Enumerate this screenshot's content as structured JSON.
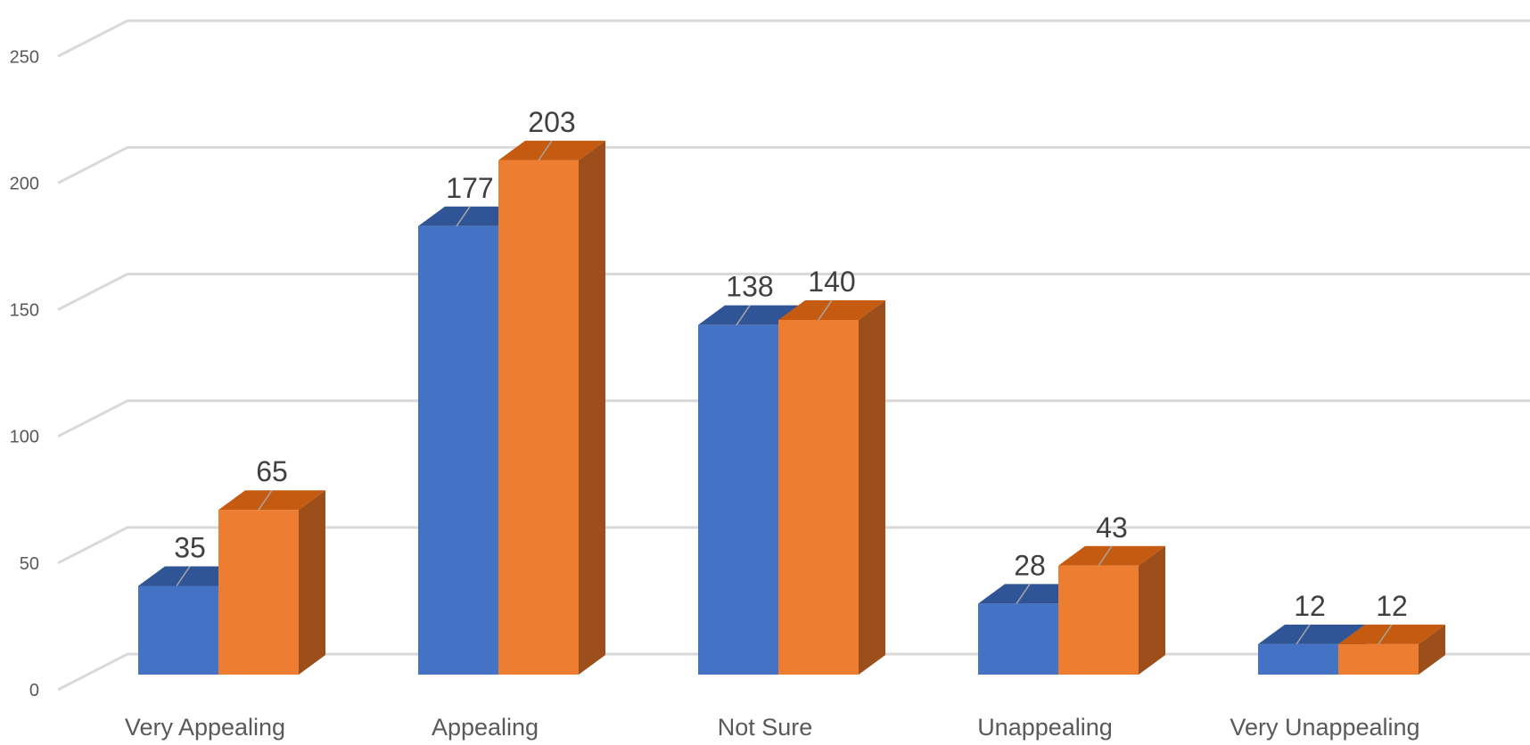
{
  "chart_data": {
    "type": "bar",
    "style": "3d-clustered-column",
    "categories": [
      "Very Appealing",
      "Appealing",
      "Not Sure",
      "Unappealing",
      "Very Unappealing"
    ],
    "series": [
      {
        "values": [
          35,
          177,
          138,
          28,
          12
        ],
        "color": "#4472C4",
        "top_color": "#2F5597",
        "side_color": "#2F4F8A"
      },
      {
        "values": [
          65,
          203,
          140,
          43,
          12
        ],
        "color": "#ED7D31",
        "top_color": "#C55A11",
        "side_color": "#9C4E1B"
      }
    ],
    "y_ticks": [
      0,
      50,
      100,
      150,
      200,
      250
    ],
    "ylim": [
      0,
      250
    ],
    "grid": true,
    "legend": "none",
    "data_labels": true
  }
}
